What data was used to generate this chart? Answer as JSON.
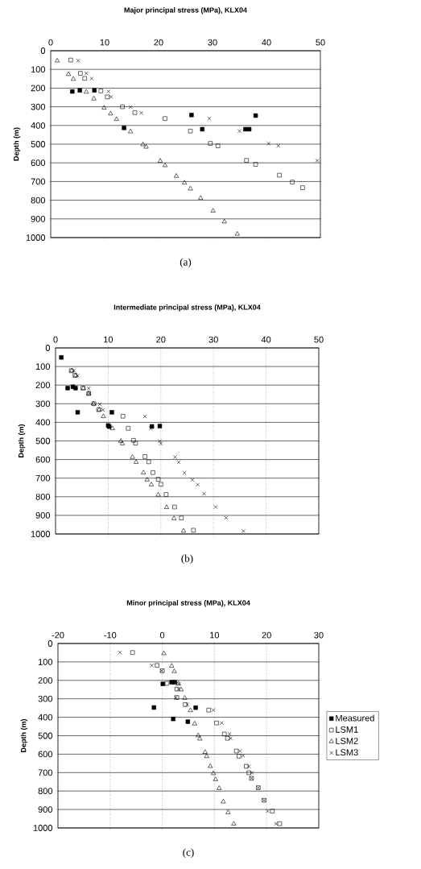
{
  "chart_data": [
    {
      "type": "scatter",
      "title": "Major principal stress (MPa), KLX04",
      "ylabel": "Depth (m)",
      "annotations": [
        "(a)"
      ],
      "xlim": [
        0,
        50
      ],
      "xticks": [
        0,
        10,
        20,
        30,
        40,
        50
      ],
      "ylim": [
        1000,
        0
      ],
      "yticks": [
        0,
        100,
        200,
        300,
        400,
        500,
        600,
        700,
        800,
        900,
        1000
      ],
      "grid": "y",
      "legend": false,
      "series": [
        {
          "color": "#000000",
          "marker": "square",
          "x": [
            4,
            5.4,
            8.1,
            26.1,
            38,
            13.6,
            28.1,
            36.1,
            36.8
          ],
          "values": [
            218,
            212,
            212,
            344,
            347,
            413,
            420,
            420,
            420
          ]
        },
        {
          "color": "#000000",
          "marker": "square",
          "x": [
            3.7,
            5.5,
            6.3,
            9.3,
            10.5,
            13.3,
            15.6,
            21.2,
            25.9,
            29.6,
            31,
            36.3,
            38,
            42.4,
            44.8,
            46.7
          ],
          "values": [
            50,
            121,
            148,
            215,
            247,
            300,
            331,
            363,
            430,
            496,
            509,
            587,
            608,
            666,
            703,
            733
          ]
        },
        {
          "color": "#000000",
          "marker": "triangle",
          "x": [
            1.2,
            3.3,
            4.2,
            6.6,
            8,
            9.9,
            11.1,
            12.2,
            14.8,
            17.1,
            17.7,
            20.3,
            21.2,
            23.3,
            24.8,
            25.9,
            27.8,
            30.1,
            32.2,
            34.6
          ],
          "values": [
            54,
            126,
            152,
            221,
            257,
            306,
            337,
            367,
            433,
            502,
            515,
            590,
            614,
            671,
            707,
            739,
            789,
            857,
            915,
            981
          ]
        },
        {
          "color": "#000000",
          "marker": "cross",
          "x": [
            5.1,
            6.6,
            7.6,
            10.7,
            11.2,
            14.8,
            16.8,
            29.4,
            35,
            40.4,
            42.2,
            49.4
          ],
          "values": [
            53,
            121,
            149,
            218,
            247,
            301,
            333,
            363,
            430,
            496,
            509,
            588
          ]
        }
      ]
    },
    {
      "type": "scatter",
      "title": "Intermediate principal stress (MPa), KLX04",
      "ylabel": "Depth (m)",
      "annotations": [
        "(b)"
      ],
      "xlim": [
        0,
        50
      ],
      "xticks": [
        0,
        10,
        20,
        30,
        40,
        50
      ],
      "ylim": [
        1000,
        0
      ],
      "yticks": [
        0,
        100,
        200,
        300,
        400,
        500,
        600,
        700,
        800,
        900,
        1000
      ],
      "grid": true,
      "legend": false,
      "series": [
        {
          "color": "#000000",
          "marker": "square",
          "x": [
            1.1,
            2.3,
            3.3,
            3.8,
            4.2,
            10.7,
            10,
            10.2,
            18.3,
            19.8
          ],
          "values": [
            51,
            216,
            209,
            216,
            346,
            346,
            417,
            423,
            422,
            420
          ]
        },
        {
          "color": "#000000",
          "marker": "square",
          "x": [
            3,
            3.7,
            5.2,
            6.3,
            7.3,
            8.2,
            12.8,
            13.8,
            14.8,
            15.2,
            17,
            17.7,
            18.5,
            19.5,
            20,
            21,
            22.6,
            23.9,
            26.2
          ],
          "values": [
            123,
            148,
            216,
            245,
            300,
            332,
            367,
            432,
            497,
            512,
            584,
            612,
            670,
            706,
            733,
            788,
            855,
            914,
            980
          ]
        },
        {
          "color": "#000000",
          "marker": "triangle",
          "x": [
            3.1,
            3.8,
            5.3,
            6.3,
            7.2,
            8.3,
            9.1,
            10.8,
            12.4,
            12.7,
            14.6,
            15.3,
            16.7,
            17.4,
            18.2,
            19.5,
            21.1,
            22.5,
            24.3
          ],
          "values": [
            122,
            148,
            217,
            245,
            300,
            332,
            368,
            433,
            501,
            514,
            587,
            614,
            671,
            709,
            735,
            790,
            857,
            917,
            984
          ]
        },
        {
          "color": "#000000",
          "marker": "cross",
          "x": [
            3.5,
            4.2,
            6.3,
            6.4,
            8.4,
            9,
            17,
            18.1,
            19.8,
            20,
            22.7,
            23.4,
            24.5,
            26,
            27,
            28.2,
            30.4,
            32.4,
            35.7
          ],
          "values": [
            122,
            149,
            217,
            245,
            303,
            333,
            368,
            433,
            501,
            514,
            587,
            614,
            671,
            709,
            735,
            784,
            855,
            913,
            984
          ]
        }
      ]
    },
    {
      "type": "scatter",
      "title": "Minor principal stress (MPa), KLX04",
      "ylabel": "Depth (m)",
      "annotations": [
        "(c)"
      ],
      "xlim": [
        -20,
        30
      ],
      "xticks": [
        -20,
        -10,
        0,
        10,
        20,
        30
      ],
      "ylim": [
        1000,
        0
      ],
      "yticks": [
        0,
        100,
        200,
        300,
        400,
        500,
        600,
        700,
        800,
        900,
        1000
      ],
      "grid": true,
      "legend": "right",
      "series": [
        {
          "name": "Measured",
          "color": "#000000",
          "marker": "square",
          "x": [
            0.1,
            1.8,
            2.4,
            -1.6,
            6.4,
            2.1,
            4.5,
            4.9
          ],
          "values": [
            219,
            210,
            210,
            347,
            348,
            409,
            null,
            424
          ]
        },
        {
          "name": "LSM1",
          "color": "#000000",
          "marker": "square",
          "x": [
            -5.7,
            -1,
            0,
            0.9,
            2.8,
            2.8,
            4.4,
            8.9,
            10.4,
            11.9,
            12.5,
            14.2,
            14.7,
            16.1,
            16.6,
            17.1,
            18.4,
            19.5,
            21.1,
            22.5
          ],
          "values": [
            49,
            119,
            148,
            216,
            247,
            293,
            331,
            361,
            431,
            491,
            514,
            583,
            611,
            666,
            701,
            731,
            782,
            850,
            909,
            977
          ]
        },
        {
          "name": "LSM2",
          "color": "#000000",
          "marker": "triangle",
          "x": [
            0.3,
            1.8,
            2.3,
            3.1,
            3.6,
            4.3,
            5.4,
            6.2,
            6.9,
            7.2,
            8.2,
            8.5,
            9.2,
            9.8,
            10.2,
            10.9,
            11.7,
            12.6,
            13.7
          ],
          "values": [
            54,
            122,
            151,
            218,
            250,
            296,
            363,
            435,
            499,
            517,
            589,
            612,
            666,
            704,
            737,
            785,
            858,
            916,
            978
          ]
        },
        {
          "name": "LSM3",
          "color": "#000000",
          "marker": "cross",
          "x": [
            -8.1,
            -2,
            -0.1,
            3.2,
            3.1,
            2.6,
            4.8,
            9.8,
            11.4,
            12.9,
            13.1,
            14.9,
            15.5,
            16.6,
            17.2,
            17.1,
            18.4,
            19.5,
            20.2,
            21.8
          ],
          "values": [
            49,
            119,
            148,
            219,
            247,
            293,
            331,
            361,
            431,
            491,
            514,
            583,
            608,
            666,
            701,
            731,
            782,
            850,
            909,
            977
          ]
        }
      ]
    }
  ]
}
